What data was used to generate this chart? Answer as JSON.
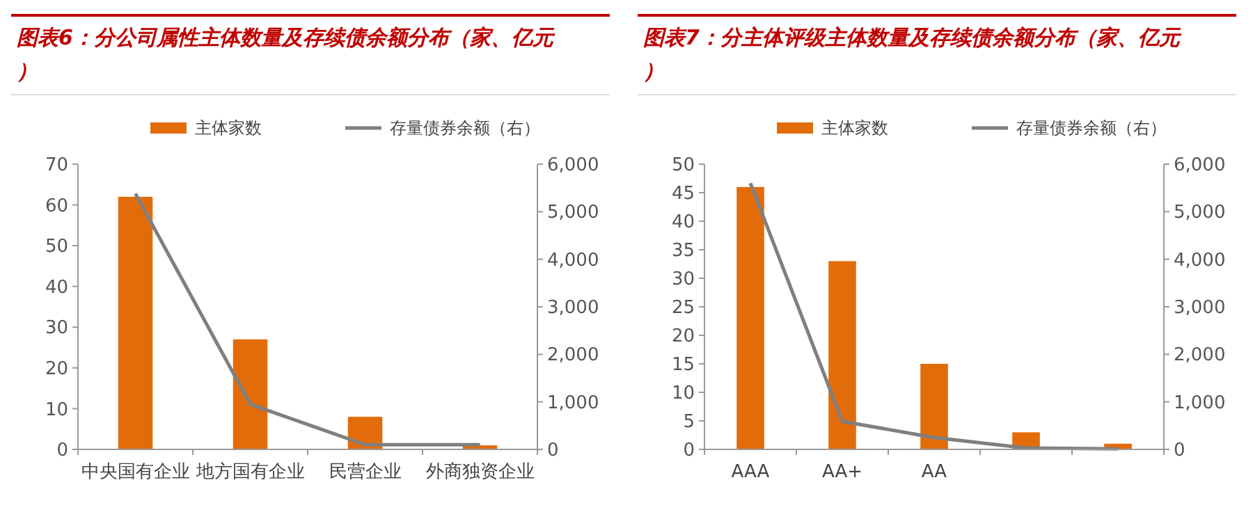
{
  "chart_data": [
    {
      "type": "bar",
      "title": "图表6：分公司属性主体数量及存续债余额分布（家、亿元）",
      "categories": [
        "中央国有企业",
        "地方国有企业",
        "民营企业",
        "外商独资企业"
      ],
      "series": [
        {
          "name": "主体家数",
          "color": "#e36c0a",
          "values": [
            62,
            27,
            8,
            1
          ]
        },
        {
          "name": "存量债券余额（右）",
          "type": "line",
          "axis": "y2",
          "color": "#7f7f7f",
          "values": [
            5380,
            950,
            100,
            100
          ]
        }
      ],
      "ylim": [
        0,
        70
      ],
      "yticks": [
        0,
        10,
        20,
        30,
        40,
        50,
        60,
        70
      ],
      "y2lim": [
        0,
        6000
      ],
      "y2ticks": [
        {
          "value": 0,
          "label": "0"
        },
        {
          "value": 1000,
          "label": "1,000"
        },
        {
          "value": 2000,
          "label": "2,000"
        },
        {
          "value": 3000,
          "label": "3,000"
        },
        {
          "value": 4000,
          "label": "4,000"
        },
        {
          "value": 5000,
          "label": "5,000"
        },
        {
          "value": 6000,
          "label": "6,000"
        }
      ],
      "legend": "top",
      "grid": false
    },
    {
      "type": "bar",
      "title": "图表7：分主体评级主体数量及存续债余额分布（家、亿元）",
      "categories": [
        "AAA",
        "AA+",
        "AA",
        null,
        null
      ],
      "series": [
        {
          "name": "主体家数",
          "color": "#e36c0a",
          "values": [
            46,
            33,
            15,
            3,
            1
          ]
        },
        {
          "name": "存量债券余额（右）",
          "type": "line",
          "axis": "y2",
          "color": "#7f7f7f",
          "values": [
            5600,
            590,
            250,
            30,
            10
          ]
        }
      ],
      "ylim": [
        0,
        50
      ],
      "yticks": [
        0,
        5,
        10,
        15,
        20,
        25,
        30,
        35,
        40,
        45,
        50
      ],
      "y2lim": [
        0,
        6000
      ],
      "y2ticks": [
        {
          "value": 0,
          "label": "0"
        },
        {
          "value": 1000,
          "label": "1,000"
        },
        {
          "value": 2000,
          "label": "2,000"
        },
        {
          "value": 3000,
          "label": "3,000"
        },
        {
          "value": 4000,
          "label": "4,000"
        },
        {
          "value": 5000,
          "label": "5,000"
        },
        {
          "value": 6000,
          "label": "6,000"
        }
      ],
      "legend": "top",
      "grid": false
    }
  ]
}
